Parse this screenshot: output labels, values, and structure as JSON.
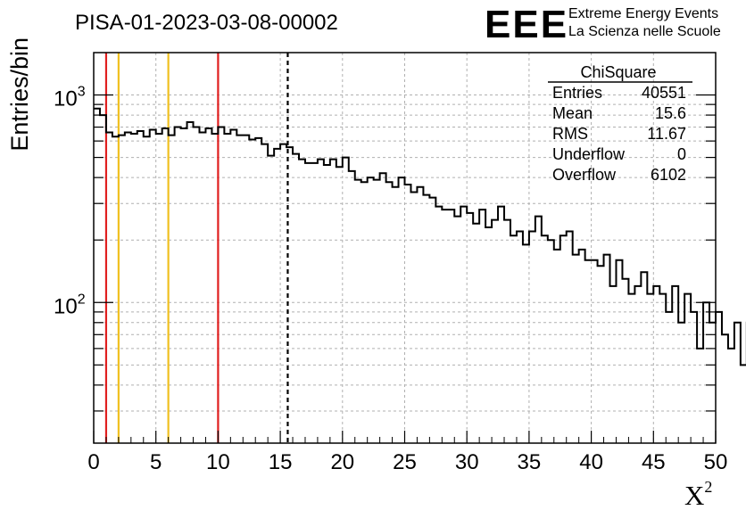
{
  "header": {
    "title": "PISA-01-2023-03-08-00002",
    "logo_text": "EEE",
    "logo_line1": "Extreme Energy Events",
    "logo_line2": "La Scienza nelle Scuole",
    "logo_color": "#1010ee"
  },
  "stats": {
    "name": "ChiSquare",
    "rows": [
      {
        "label": "Entries",
        "value": "40551"
      },
      {
        "label": "Mean",
        "value": "15.6"
      },
      {
        "label": "RMS",
        "value": "11.67"
      },
      {
        "label": "Underflow",
        "value": "0"
      },
      {
        "label": "Overflow",
        "value": "6102"
      }
    ]
  },
  "chart_data": {
    "type": "histogram",
    "title": "PISA-01-2023-03-08-00002",
    "xlabel": "X",
    "xlabel_sup": "2",
    "ylabel": "Entries/bin",
    "xlim": [
      0,
      50
    ],
    "ylim": [
      21,
      1600
    ],
    "yscale": "log",
    "grid": true,
    "bin_width": 0.5,
    "x_ticks": [
      0,
      5,
      10,
      15,
      20,
      25,
      30,
      35,
      40,
      45,
      50
    ],
    "y_ticks": [
      {
        "value": 100,
        "base": "10",
        "exp": "2"
      },
      {
        "value": 1000,
        "base": "10",
        "exp": "3"
      }
    ],
    "values": [
      860,
      800,
      660,
      630,
      640,
      660,
      650,
      670,
      630,
      680,
      650,
      690,
      640,
      700,
      690,
      740,
      700,
      660,
      690,
      650,
      700,
      650,
      680,
      640,
      640,
      610,
      620,
      580,
      510,
      550,
      580,
      560,
      520,
      490,
      470,
      470,
      490,
      460,
      490,
      450,
      500,
      430,
      390,
      380,
      400,
      390,
      420,
      380,
      360,
      400,
      370,
      340,
      360,
      330,
      320,
      290,
      280,
      280,
      260,
      290,
      270,
      240,
      280,
      230,
      250,
      290,
      250,
      210,
      220,
      190,
      220,
      260,
      210,
      200,
      180,
      210,
      220,
      170,
      180,
      160,
      160,
      150,
      170,
      120,
      160,
      130,
      110,
      120,
      140,
      110,
      120,
      110,
      90,
      120,
      80,
      110,
      90,
      60,
      100,
      80,
      90,
      70,
      60,
      80,
      50,
      80,
      60,
      60,
      70,
      50,
      60
    ],
    "vertical_lines": [
      {
        "x": 1,
        "color": "#e02020",
        "style": "solid"
      },
      {
        "x": 2,
        "color": "#f0c020",
        "style": "solid"
      },
      {
        "x": 6,
        "color": "#f0c020",
        "style": "solid"
      },
      {
        "x": 10,
        "color": "#e02020",
        "style": "solid"
      },
      {
        "x": 15.6,
        "color": "#000000",
        "style": "dashed"
      }
    ]
  }
}
